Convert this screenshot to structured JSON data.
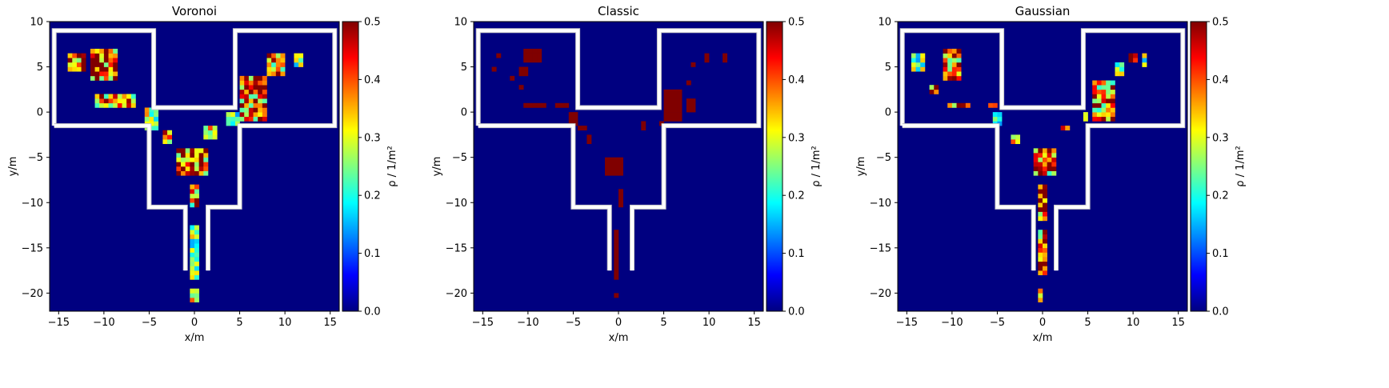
{
  "colors": {
    "background": "#000080",
    "walls": "#ffffff"
  },
  "chart_data": [
    {
      "type": "heatmap",
      "title": "Voronoi",
      "xlabel": "x/m",
      "ylabel": "y/m",
      "xlim": [
        -16,
        16
      ],
      "ylim": [
        -22,
        10
      ],
      "xticks": [
        "−15",
        "−10",
        "−5",
        "0",
        "5",
        "10",
        "15"
      ],
      "yticks": [
        "10",
        "5",
        "0",
        "−5",
        "−10",
        "−15",
        "−20"
      ],
      "colorbar": {
        "label": "ρ / 1/m²",
        "colormap": "jet",
        "range": [
          0,
          0.5
        ],
        "ticks": [
          "0.0",
          "0.1",
          "0.2",
          "0.3",
          "0.4",
          "0.5"
        ]
      },
      "cell_size": 0.5,
      "high_density_regions": [
        {
          "x": [
            -14,
            -12
          ],
          "y": [
            4.5,
            6.5
          ],
          "value": 0.5
        },
        {
          "x": [
            -11.5,
            -8.5
          ],
          "y": [
            3.5,
            7
          ],
          "value": 0.5
        },
        {
          "x": [
            -11,
            -6.5
          ],
          "y": [
            0.5,
            2
          ],
          "value": 0.45
        },
        {
          "x": [
            -5.5,
            -4
          ],
          "y": [
            -2,
            0.5
          ],
          "value": 0.35
        },
        {
          "x": [
            -3.5,
            -2.5
          ],
          "y": [
            -3.5,
            -2
          ],
          "value": 0.45
        },
        {
          "x": [
            -2,
            1.5
          ],
          "y": [
            -7,
            -4
          ],
          "value": 0.5
        },
        {
          "x": [
            -0.5,
            0.5
          ],
          "y": [
            -10.5,
            -8
          ],
          "value": 0.45
        },
        {
          "x": [
            -0.5,
            0.5
          ],
          "y": [
            -18.5,
            -12.5
          ],
          "value": 0.3
        },
        {
          "x": [
            -0.5,
            0.5
          ],
          "y": [
            -21,
            -19.5
          ],
          "value": 0.45
        },
        {
          "x": [
            1,
            2.5
          ],
          "y": [
            -3,
            -1.5
          ],
          "value": 0.35
        },
        {
          "x": [
            3.5,
            5
          ],
          "y": [
            -1.5,
            0
          ],
          "value": 0.3
        },
        {
          "x": [
            5,
            8
          ],
          "y": [
            -1,
            4
          ],
          "value": 0.5
        },
        {
          "x": [
            8,
            10
          ],
          "y": [
            4,
            6.5
          ],
          "value": 0.45
        },
        {
          "x": [
            11,
            12
          ],
          "y": [
            5,
            6.5
          ],
          "value": 0.3
        }
      ]
    },
    {
      "type": "heatmap",
      "title": "Classic",
      "xlabel": "x/m",
      "ylabel": "y/m",
      "xlim": [
        -16,
        16
      ],
      "ylim": [
        -22,
        10
      ],
      "xticks": [
        "−15",
        "−10",
        "−5",
        "0",
        "5",
        "10",
        "15"
      ],
      "yticks": [
        "10",
        "5",
        "0",
        "−5",
        "−10",
        "−15",
        "−20"
      ],
      "colorbar": {
        "label": "ρ / 1/m²",
        "colormap": "jet",
        "range": [
          0,
          0.5
        ],
        "ticks": [
          "0.0",
          "0.1",
          "0.2",
          "0.3",
          "0.4",
          "0.5"
        ]
      },
      "cell_size": 0.5,
      "high_density_regions": [
        {
          "x": [
            -13.5,
            -13
          ],
          "y": [
            6,
            6.5
          ],
          "value": 0.5
        },
        {
          "x": [
            -14,
            -13.5
          ],
          "y": [
            4.5,
            5
          ],
          "value": 0.5
        },
        {
          "x": [
            -12,
            -11.5
          ],
          "y": [
            3.5,
            4
          ],
          "value": 0.5
        },
        {
          "x": [
            -10.5,
            -8.5
          ],
          "y": [
            5.5,
            7
          ],
          "value": 0.5
        },
        {
          "x": [
            -11,
            -10
          ],
          "y": [
            4,
            5
          ],
          "value": 0.5
        },
        {
          "x": [
            -11,
            -10.5
          ],
          "y": [
            2.5,
            3
          ],
          "value": 0.5
        },
        {
          "x": [
            -10.5,
            -8
          ],
          "y": [
            0.5,
            1
          ],
          "value": 0.5
        },
        {
          "x": [
            -7,
            -5.5
          ],
          "y": [
            0.5,
            1
          ],
          "value": 0.5
        },
        {
          "x": [
            -5.5,
            -4.5
          ],
          "y": [
            -1.5,
            0
          ],
          "value": 0.5
        },
        {
          "x": [
            -4.5,
            -3.5
          ],
          "y": [
            -2,
            -1.5
          ],
          "value": 0.5
        },
        {
          "x": [
            -3.5,
            -3
          ],
          "y": [
            -3.5,
            -2.5
          ],
          "value": 0.5
        },
        {
          "x": [
            -1.5,
            0.5
          ],
          "y": [
            -7,
            -5
          ],
          "value": 0.5
        },
        {
          "x": [
            0,
            0.5
          ],
          "y": [
            -10.5,
            -8.5
          ],
          "value": 0.5
        },
        {
          "x": [
            -0.5,
            0
          ],
          "y": [
            -18.5,
            -13
          ],
          "value": 0.5
        },
        {
          "x": [
            -0.5,
            0
          ],
          "y": [
            -20.5,
            -20
          ],
          "value": 0.5
        },
        {
          "x": [
            2.5,
            3
          ],
          "y": [
            -2,
            -1
          ],
          "value": 0.5
        },
        {
          "x": [
            4.5,
            5
          ],
          "y": [
            -1.5,
            -1
          ],
          "value": 0.5
        },
        {
          "x": [
            5,
            7
          ],
          "y": [
            -1,
            2.5
          ],
          "value": 0.5
        },
        {
          "x": [
            7.5,
            8.5
          ],
          "y": [
            0,
            1.5
          ],
          "value": 0.5
        },
        {
          "x": [
            7.5,
            8
          ],
          "y": [
            3,
            3.5
          ],
          "value": 0.5
        },
        {
          "x": [
            8,
            8.5
          ],
          "y": [
            5,
            5.5
          ],
          "value": 0.5
        },
        {
          "x": [
            9.5,
            10
          ],
          "y": [
            5.5,
            6.5
          ],
          "value": 0.5
        },
        {
          "x": [
            11.5,
            12
          ],
          "y": [
            5.5,
            6.5
          ],
          "value": 0.5
        }
      ]
    },
    {
      "type": "heatmap",
      "title": "Gaussian",
      "xlabel": "x/m",
      "ylabel": "y/m",
      "xlim": [
        -16,
        16
      ],
      "ylim": [
        -22,
        10
      ],
      "xticks": [
        "−15",
        "−10",
        "−5",
        "0",
        "5",
        "10",
        "15"
      ],
      "yticks": [
        "10",
        "5",
        "0",
        "−5",
        "−10",
        "−15",
        "−20"
      ],
      "colorbar": {
        "label": "ρ / 1/m²",
        "colormap": "jet",
        "range": [
          0,
          0.5
        ],
        "ticks": [
          "0.0",
          "0.1",
          "0.2",
          "0.3",
          "0.4",
          "0.5"
        ]
      },
      "cell_size": 0.5,
      "high_density_regions": [
        {
          "x": [
            -14.5,
            -13
          ],
          "y": [
            4.5,
            6.5
          ],
          "value": 0.3
        },
        {
          "x": [
            -12.5,
            -11.5
          ],
          "y": [
            2,
            3
          ],
          "value": 0.5
        },
        {
          "x": [
            -11,
            -9
          ],
          "y": [
            3.5,
            7
          ],
          "value": 0.45
        },
        {
          "x": [
            -10.5,
            -8
          ],
          "y": [
            0.5,
            1
          ],
          "value": 0.5
        },
        {
          "x": [
            -6,
            -5
          ],
          "y": [
            0.5,
            1
          ],
          "value": 0.35
        },
        {
          "x": [
            -5.5,
            -4.5
          ],
          "y": [
            -1.5,
            0
          ],
          "value": 0.3
        },
        {
          "x": [
            -3.5,
            -2.5
          ],
          "y": [
            -3.5,
            -2.5
          ],
          "value": 0.35
        },
        {
          "x": [
            -1,
            1.5
          ],
          "y": [
            -7,
            -4
          ],
          "value": 0.45
        },
        {
          "x": [
            -0.5,
            0.5
          ],
          "y": [
            -12,
            -8
          ],
          "value": 0.5
        },
        {
          "x": [
            -0.5,
            0.5
          ],
          "y": [
            -18,
            -13
          ],
          "value": 0.5
        },
        {
          "x": [
            -0.5,
            0
          ],
          "y": [
            -21,
            -19.5
          ],
          "value": 0.35
        },
        {
          "x": [
            2,
            3
          ],
          "y": [
            -2,
            -1.5
          ],
          "value": 0.5
        },
        {
          "x": [
            4.5,
            5
          ],
          "y": [
            -1,
            0
          ],
          "value": 0.3
        },
        {
          "x": [
            5.5,
            8
          ],
          "y": [
            -1,
            3.5
          ],
          "value": 0.45
        },
        {
          "x": [
            8,
            9
          ],
          "y": [
            4,
            5.5
          ],
          "value": 0.35
        },
        {
          "x": [
            9.5,
            10.5
          ],
          "y": [
            5.5,
            6.5
          ],
          "value": 0.5
        },
        {
          "x": [
            11,
            11.5
          ],
          "y": [
            5,
            6.5
          ],
          "value": 0.3
        }
      ]
    }
  ]
}
